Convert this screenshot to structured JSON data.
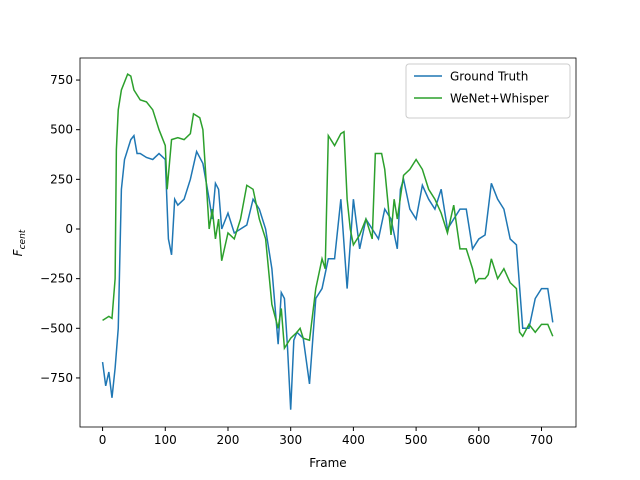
{
  "chart_data": {
    "type": "line",
    "xlabel": "Frame",
    "ylabel": {
      "base": "F",
      "sub": "cent"
    },
    "xlim": [
      -36,
      755
    ],
    "ylim": [
      -997,
      861
    ],
    "xticks": [
      0,
      100,
      200,
      300,
      400,
      500,
      600,
      700
    ],
    "yticks": [
      {
        "value": -750,
        "label": "−750"
      },
      {
        "value": -500,
        "label": "−500"
      },
      {
        "value": -250,
        "label": "−250"
      },
      0,
      250,
      500,
      750
    ],
    "legend": "upper right",
    "series": [
      {
        "name": "Ground Truth",
        "color": "#1f77b4",
        "x": [
          0,
          5,
          10,
          15,
          20,
          25,
          30,
          35,
          40,
          45,
          50,
          55,
          60,
          70,
          80,
          90,
          100,
          105,
          110,
          115,
          120,
          130,
          140,
          150,
          160,
          170,
          175,
          180,
          185,
          190,
          200,
          210,
          220,
          230,
          240,
          250,
          260,
          270,
          280,
          285,
          290,
          295,
          300,
          305,
          310,
          320,
          330,
          340,
          350,
          360,
          370,
          380,
          390,
          400,
          410,
          420,
          430,
          440,
          450,
          460,
          470,
          475,
          480,
          490,
          500,
          510,
          520,
          530,
          540,
          550,
          560,
          570,
          580,
          590,
          600,
          610,
          620,
          630,
          640,
          650,
          660,
          670,
          680,
          690,
          700,
          710,
          718
        ],
        "values": [
          -670,
          -790,
          -720,
          -850,
          -700,
          -500,
          200,
          350,
          400,
          450,
          470,
          380,
          380,
          360,
          350,
          380,
          350,
          -50,
          -130,
          150,
          120,
          150,
          250,
          390,
          330,
          150,
          50,
          230,
          200,
          0,
          80,
          -20,
          0,
          20,
          150,
          100,
          0,
          -200,
          -580,
          -320,
          -350,
          -600,
          -910,
          -560,
          -520,
          -550,
          -780,
          -350,
          -300,
          -150,
          -150,
          150,
          -300,
          150,
          -100,
          50,
          0,
          -50,
          100,
          50,
          -100,
          200,
          250,
          100,
          50,
          220,
          150,
          100,
          200,
          0,
          50,
          100,
          100,
          -100,
          -50,
          -30,
          230,
          150,
          100,
          -50,
          -80,
          -500,
          -500,
          -350,
          -300,
          -300,
          -470
        ]
      },
      {
        "name": "WeNet+Whisper",
        "color": "#2ca02c",
        "x": [
          0,
          10,
          15,
          20,
          22,
          25,
          30,
          40,
          45,
          50,
          60,
          70,
          80,
          90,
          100,
          103,
          110,
          120,
          130,
          140,
          145,
          150,
          155,
          160,
          170,
          175,
          180,
          185,
          190,
          200,
          210,
          220,
          230,
          240,
          250,
          260,
          270,
          280,
          285,
          290,
          300,
          310,
          315,
          320,
          330,
          340,
          350,
          355,
          360,
          370,
          380,
          385,
          390,
          395,
          400,
          410,
          420,
          430,
          435,
          445,
          450,
          460,
          465,
          470,
          480,
          490,
          500,
          510,
          520,
          530,
          540,
          550,
          560,
          570,
          580,
          590,
          595,
          600,
          610,
          615,
          620,
          630,
          640,
          650,
          660,
          665,
          670,
          680,
          690,
          700,
          710,
          718
        ],
        "values": [
          -460,
          -440,
          -450,
          -250,
          400,
          600,
          700,
          780,
          770,
          700,
          650,
          640,
          600,
          500,
          420,
          200,
          450,
          460,
          450,
          480,
          580,
          570,
          560,
          500,
          0,
          100,
          -50,
          50,
          -160,
          -20,
          -50,
          50,
          220,
          200,
          50,
          -50,
          -380,
          -500,
          -400,
          -600,
          -550,
          -520,
          -500,
          -550,
          -560,
          -300,
          -150,
          -200,
          470,
          420,
          480,
          490,
          150,
          0,
          -80,
          -30,
          50,
          -50,
          380,
          380,
          300,
          -30,
          150,
          50,
          270,
          300,
          350,
          300,
          200,
          150,
          80,
          -20,
          120,
          -100,
          -100,
          -200,
          -270,
          -250,
          -250,
          -230,
          -150,
          -250,
          -200,
          -270,
          -300,
          -520,
          -540,
          -480,
          -520,
          -480,
          -480,
          -540
        ]
      }
    ]
  }
}
